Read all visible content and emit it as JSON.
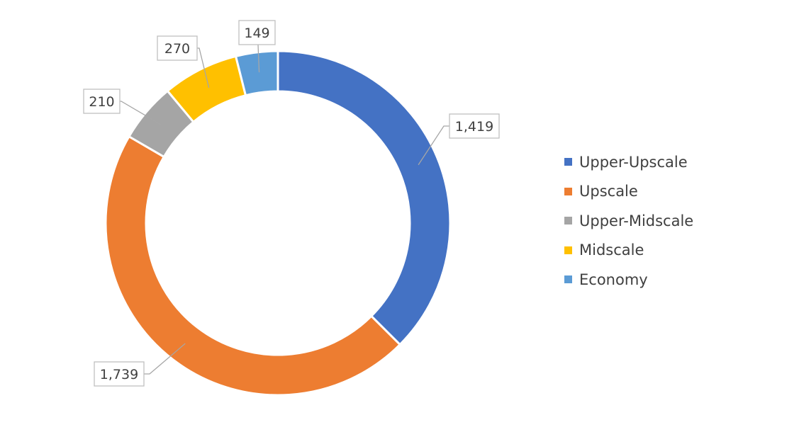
{
  "chart_data": {
    "type": "pie",
    "variant": "donut",
    "title": "",
    "categories": [
      "Upper-Upscale",
      "Upscale",
      "Upper-Midscale",
      "Midscale",
      "Economy"
    ],
    "values": [
      1419,
      1739,
      210,
      270,
      149
    ],
    "data_labels": [
      "1,419",
      "1,739",
      "210",
      "270",
      "149"
    ],
    "colors": [
      "#4472C4",
      "#ED7D31",
      "#A5A5A5",
      "#FFC000",
      "#5B9BD5"
    ],
    "legend": "right",
    "start": "top",
    "direction": "clockwise"
  }
}
